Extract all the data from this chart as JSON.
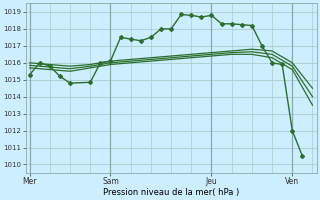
{
  "background_color": "#cceeff",
  "grid_color": "#aacccc",
  "line_color": "#2d6e2d",
  "marker_color": "#2d6e2d",
  "xlabel": "Pression niveau de la mer( hPa )",
  "ylim": [
    1009.5,
    1019.5
  ],
  "yticks": [
    1010,
    1011,
    1012,
    1013,
    1014,
    1015,
    1016,
    1017,
    1018,
    1019
  ],
  "xlim": [
    -0.2,
    14.2
  ],
  "xtick_positions": [
    0,
    4,
    9,
    13
  ],
  "xtick_labels": [
    "Mer",
    "Sam",
    "Jeu",
    "Ven"
  ],
  "vlines": [
    0,
    4,
    9,
    13
  ],
  "series_main": {
    "x": [
      0,
      0.5,
      1,
      1.5,
      2,
      3,
      3.5,
      4,
      4.5,
      5,
      5.5,
      6,
      6.5,
      7,
      7.5,
      8,
      8.5,
      9,
      9.5,
      10,
      10.5,
      11,
      11.5,
      12,
      12.5,
      13,
      13.5
    ],
    "y": [
      1015.3,
      1016.0,
      1015.8,
      1015.2,
      1014.8,
      1014.85,
      1016.0,
      1016.1,
      1017.5,
      1017.4,
      1017.3,
      1017.5,
      1018.0,
      1018.0,
      1018.85,
      1018.8,
      1018.7,
      1018.8,
      1018.3,
      1018.3,
      1018.25,
      1018.2,
      1017.0,
      1016.0,
      1015.9,
      1012.0,
      1010.5
    ],
    "marker": "D",
    "markersize": 2.0,
    "linewidth": 1.0
  },
  "series_envelope": [
    {
      "x": [
        0,
        1,
        2,
        3,
        4,
        5,
        6,
        7,
        8,
        9,
        10,
        11,
        12,
        13,
        14
      ],
      "y": [
        1016.0,
        1015.9,
        1015.8,
        1015.9,
        1016.1,
        1016.2,
        1016.3,
        1016.4,
        1016.5,
        1016.6,
        1016.7,
        1016.8,
        1016.7,
        1016.0,
        1014.5
      ],
      "linewidth": 0.9
    },
    {
      "x": [
        0,
        1,
        2,
        3,
        4,
        5,
        6,
        7,
        8,
        9,
        10,
        11,
        12,
        13,
        14
      ],
      "y": [
        1015.85,
        1015.75,
        1015.65,
        1015.8,
        1016.0,
        1016.1,
        1016.2,
        1016.3,
        1016.4,
        1016.5,
        1016.6,
        1016.65,
        1016.5,
        1015.8,
        1014.0
      ],
      "linewidth": 0.9
    },
    {
      "x": [
        0,
        1,
        2,
        3,
        4,
        5,
        6,
        7,
        8,
        9,
        10,
        11,
        12,
        13,
        14
      ],
      "y": [
        1015.7,
        1015.6,
        1015.5,
        1015.7,
        1015.9,
        1016.0,
        1016.1,
        1016.2,
        1016.3,
        1016.4,
        1016.5,
        1016.5,
        1016.3,
        1015.6,
        1013.5
      ],
      "linewidth": 0.9
    }
  ]
}
